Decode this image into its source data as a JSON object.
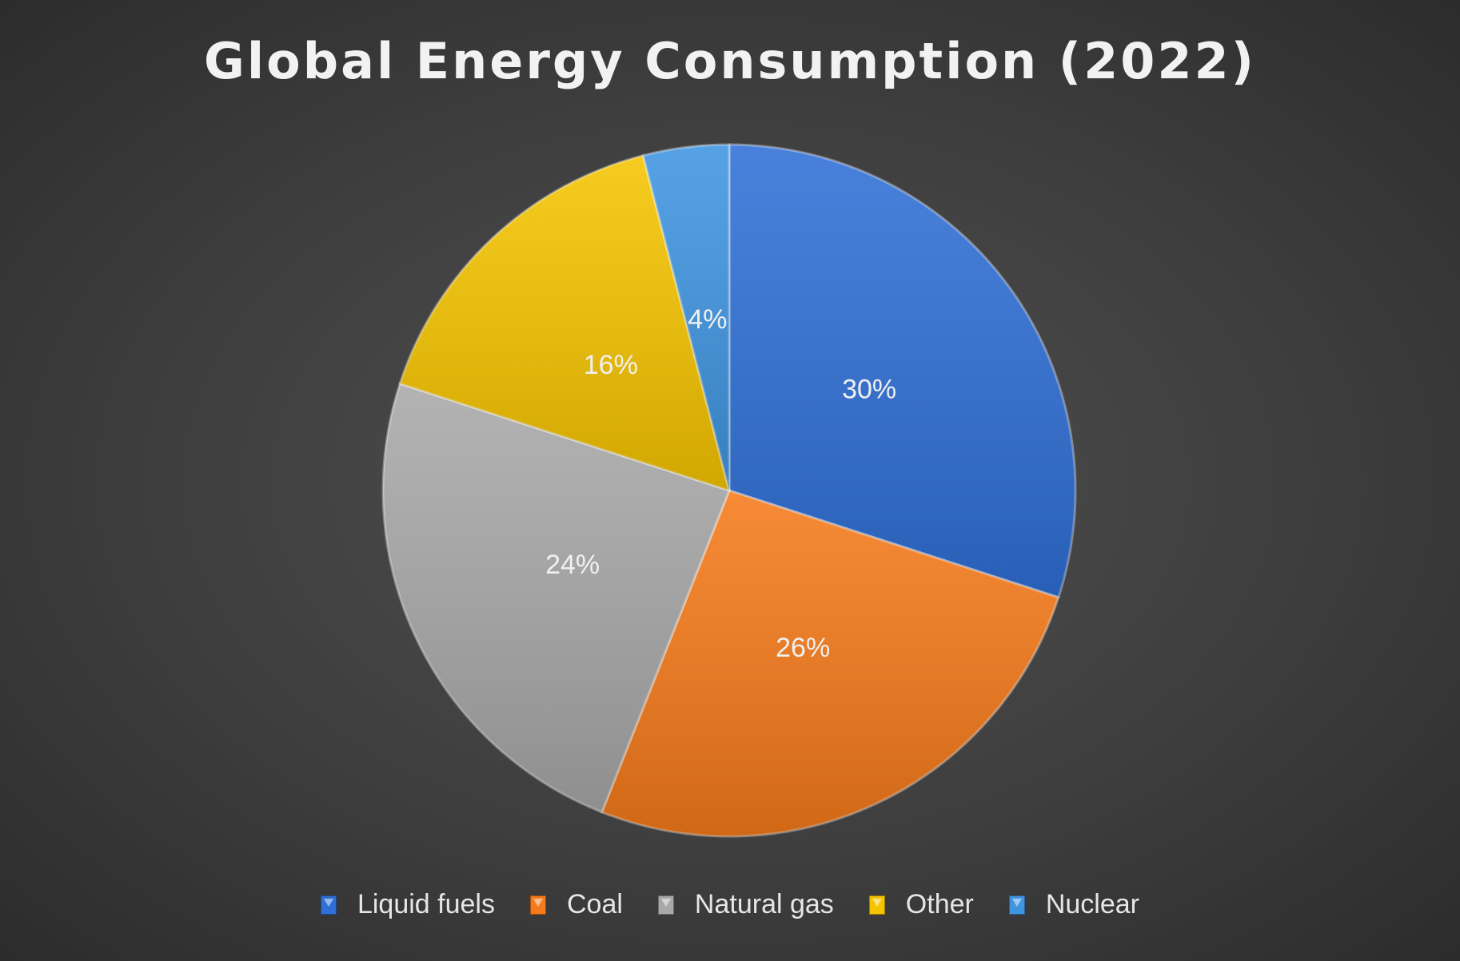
{
  "chart_data": {
    "type": "pie",
    "title": "Global Energy Consumption (2022)",
    "categories": [
      "Liquid fuels",
      "Coal",
      "Natural gas",
      "Other",
      "Nuclear"
    ],
    "values": [
      30,
      26,
      24,
      16,
      4
    ],
    "data_labels": [
      "30%",
      "26%",
      "24%",
      "16%",
      "4%"
    ],
    "colors": [
      "#2f6fd6",
      "#f57a1a",
      "#a8a8a8",
      "#f5c400",
      "#3f95e0"
    ],
    "legend_position": "bottom",
    "start_angle": "top, clockwise"
  }
}
